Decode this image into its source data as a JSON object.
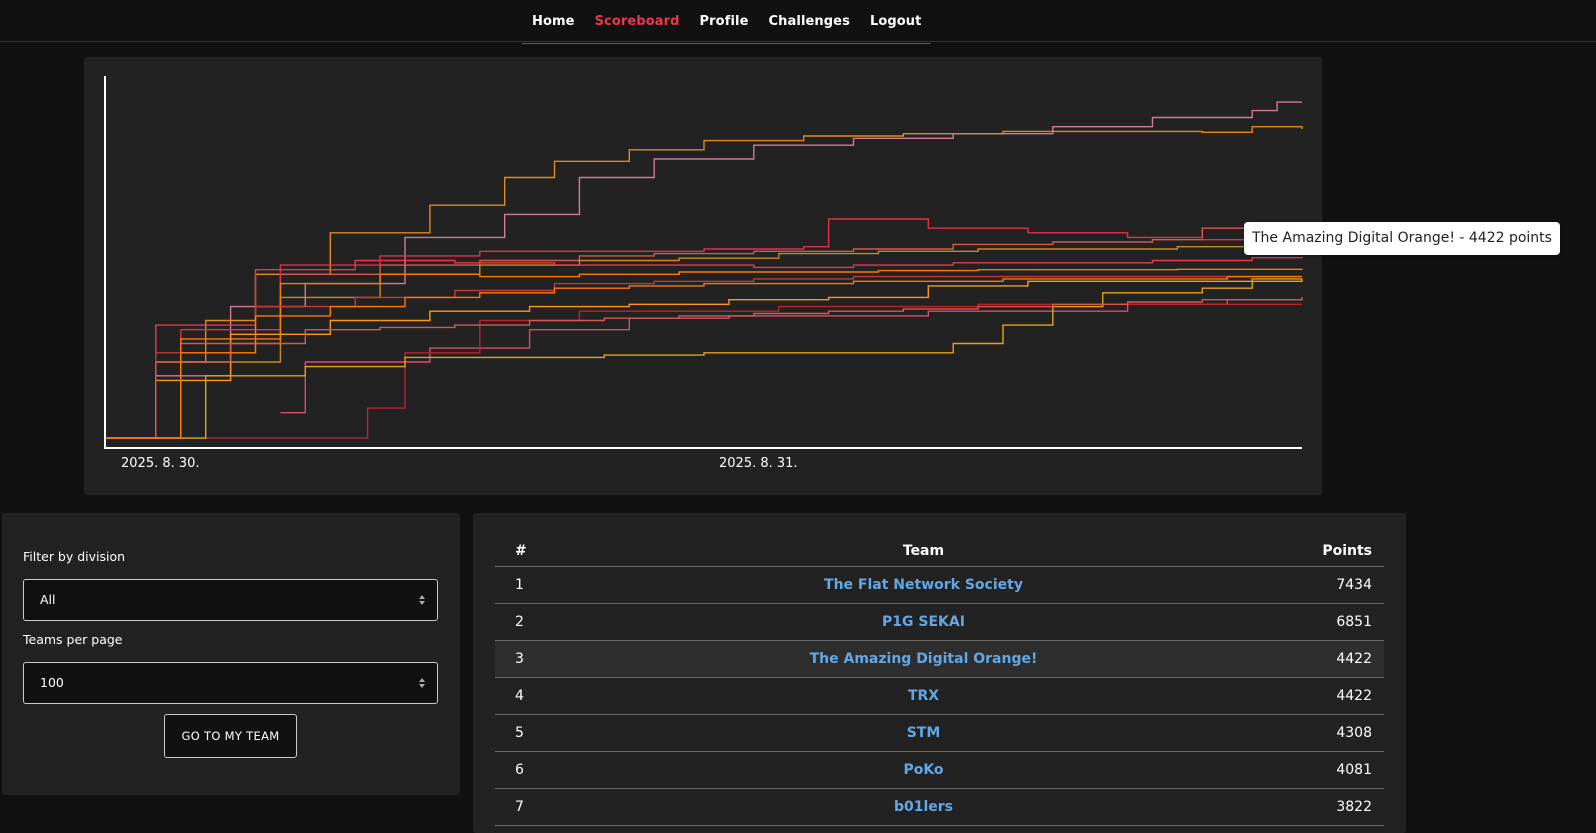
{
  "nav": {
    "items": [
      {
        "label": "Home",
        "active": false
      },
      {
        "label": "Scoreboard",
        "active": true
      },
      {
        "label": "Profile",
        "active": false
      },
      {
        "label": "Challenges",
        "active": false
      },
      {
        "label": "Logout",
        "active": false
      }
    ]
  },
  "colors": {
    "accent": "#e8384f",
    "link": "#62a8e5",
    "background": "#111111",
    "panel": "#222222"
  },
  "graph": {
    "tooltip": "The Amazing Digital Orange! - 4422 points"
  },
  "chart_data": {
    "type": "line",
    "x_tick_labels": [
      "2025. 8. 30.",
      "2025. 8. 31."
    ],
    "x_range_hours": [
      0,
      48
    ],
    "y_range": [
      0,
      8000
    ],
    "grid": false,
    "series": [
      {
        "color": "#d4799a",
        "points": [
          [
            0,
            150
          ],
          [
            2,
            1500
          ],
          [
            5,
            3000
          ],
          [
            8,
            3500
          ],
          [
            12,
            4500
          ],
          [
            16,
            5000
          ],
          [
            19,
            5800
          ],
          [
            22,
            6200
          ],
          [
            26,
            6500
          ],
          [
            30,
            6650
          ],
          [
            34,
            6750
          ],
          [
            38,
            6900
          ],
          [
            42,
            7100
          ],
          [
            46,
            7250
          ],
          [
            47,
            7434
          ],
          [
            48,
            7434
          ]
        ]
      },
      {
        "color": "#e08a1c",
        "points": [
          [
            0,
            150
          ],
          [
            2,
            1800
          ],
          [
            4,
            2700
          ],
          [
            6,
            3700
          ],
          [
            9,
            4600
          ],
          [
            13,
            5200
          ],
          [
            16,
            5800
          ],
          [
            18,
            6150
          ],
          [
            21,
            6400
          ],
          [
            24,
            6600
          ],
          [
            28,
            6700
          ],
          [
            32,
            6750
          ],
          [
            36,
            6800
          ],
          [
            40,
            6800
          ],
          [
            44,
            6780
          ],
          [
            46,
            6900
          ],
          [
            48,
            6851
          ]
        ]
      },
      {
        "color": "#d35a4c",
        "points": [
          [
            0,
            150
          ],
          [
            3,
            2200
          ],
          [
            7,
            3700
          ],
          [
            11,
            3900
          ],
          [
            15,
            4000
          ],
          [
            19,
            4100
          ],
          [
            22,
            4150
          ],
          [
            26,
            4200
          ],
          [
            30,
            4250
          ],
          [
            34,
            4350
          ],
          [
            38,
            4400
          ],
          [
            42,
            4450
          ],
          [
            44,
            4700
          ],
          [
            46,
            4700
          ],
          [
            48,
            4422
          ]
        ]
      },
      {
        "color": "#e0304a",
        "points": [
          [
            0,
            150
          ],
          [
            3,
            2500
          ],
          [
            7,
            3900
          ],
          [
            11,
            4100
          ],
          [
            15,
            4200
          ],
          [
            19,
            4200
          ],
          [
            24,
            4250
          ],
          [
            28,
            4300
          ],
          [
            29,
            4900
          ],
          [
            33,
            4700
          ],
          [
            37,
            4600
          ],
          [
            41,
            4500
          ],
          [
            44,
            4450
          ],
          [
            48,
            4422
          ]
        ]
      },
      {
        "color": "#c98a1a",
        "points": [
          [
            0,
            150
          ],
          [
            3,
            1800
          ],
          [
            7,
            3200
          ],
          [
            11,
            3700
          ],
          [
            15,
            3900
          ],
          [
            19,
            4000
          ],
          [
            23,
            4050
          ],
          [
            27,
            4150
          ],
          [
            31,
            4200
          ],
          [
            35,
            4250
          ],
          [
            39,
            4250
          ],
          [
            43,
            4300
          ],
          [
            48,
            4308
          ]
        ]
      },
      {
        "color": "#e8384f",
        "points": [
          [
            0,
            150
          ],
          [
            2,
            2600
          ],
          [
            6,
            3800
          ],
          [
            10,
            4000
          ],
          [
            14,
            3950
          ],
          [
            18,
            3900
          ],
          [
            22,
            3900
          ],
          [
            26,
            3850
          ],
          [
            30,
            3900
          ],
          [
            34,
            3950
          ],
          [
            38,
            3950
          ],
          [
            42,
            4000
          ],
          [
            46,
            4060
          ],
          [
            48,
            4081
          ]
        ]
      },
      {
        "color": "#ff7a00",
        "points": [
          [
            0,
            150
          ],
          [
            3,
            2300
          ],
          [
            7,
            3500
          ],
          [
            11,
            3700
          ],
          [
            15,
            3650
          ],
          [
            19,
            3700
          ],
          [
            23,
            3750
          ],
          [
            27,
            3750
          ],
          [
            31,
            3780
          ],
          [
            35,
            3800
          ],
          [
            39,
            3800
          ],
          [
            43,
            3810
          ],
          [
            48,
            3822
          ]
        ]
      },
      {
        "color": "#c03a3a",
        "points": [
          [
            0,
            150
          ],
          [
            2,
            2000
          ],
          [
            6,
            3000
          ],
          [
            10,
            3200
          ],
          [
            14,
            3350
          ],
          [
            18,
            3500
          ],
          [
            22,
            3550
          ],
          [
            26,
            3600
          ],
          [
            30,
            3650
          ],
          [
            34,
            3650
          ],
          [
            38,
            3650
          ],
          [
            42,
            3650
          ],
          [
            48,
            3650
          ]
        ]
      },
      {
        "color": "#ff9818",
        "points": [
          [
            0,
            150
          ],
          [
            2,
            1400
          ],
          [
            5,
            2400
          ],
          [
            9,
            2700
          ],
          [
            13,
            2900
          ],
          [
            17,
            3000
          ],
          [
            21,
            3050
          ],
          [
            25,
            3150
          ],
          [
            29,
            3200
          ],
          [
            33,
            3450
          ],
          [
            37,
            3550
          ],
          [
            41,
            3550
          ],
          [
            45,
            3550
          ],
          [
            48,
            3600
          ]
        ]
      },
      {
        "color": "#d94c6a",
        "points": [
          [
            7,
            700
          ],
          [
            8,
            1800
          ],
          [
            13,
            2100
          ],
          [
            17,
            2500
          ],
          [
            21,
            2750
          ],
          [
            25,
            2800
          ],
          [
            29,
            2800
          ],
          [
            33,
            2900
          ],
          [
            37,
            2900
          ],
          [
            41,
            3050
          ],
          [
            45,
            3150
          ],
          [
            48,
            3200
          ]
        ]
      },
      {
        "color": "#b8242f",
        "points": [
          [
            0,
            150
          ],
          [
            10,
            150
          ],
          [
            10.5,
            800
          ],
          [
            12,
            2000
          ],
          [
            15,
            2700
          ],
          [
            19,
            2900
          ],
          [
            23,
            2900
          ],
          [
            27,
            3000
          ],
          [
            31,
            3000
          ],
          [
            35,
            3050
          ],
          [
            39,
            3050
          ],
          [
            43,
            3050
          ],
          [
            48,
            3050
          ]
        ]
      },
      {
        "color": "#e3a21a",
        "points": [
          [
            0,
            150
          ],
          [
            4,
            1500
          ],
          [
            8,
            1700
          ],
          [
            12,
            1900
          ],
          [
            16,
            1900
          ],
          [
            20,
            1950
          ],
          [
            24,
            2000
          ],
          [
            28,
            2000
          ],
          [
            32,
            2000
          ],
          [
            34,
            2200
          ],
          [
            36,
            2600
          ],
          [
            38,
            3000
          ],
          [
            40,
            3300
          ],
          [
            44,
            3400
          ],
          [
            46,
            3600
          ],
          [
            48,
            3600
          ]
        ]
      },
      {
        "color": "#d35a4c",
        "points": [
          [
            0,
            150
          ],
          [
            2,
            1800
          ],
          [
            5,
            2200
          ],
          [
            8,
            2500
          ],
          [
            11,
            2550
          ],
          [
            14,
            2600
          ],
          [
            17,
            2700
          ],
          [
            20,
            2750
          ],
          [
            23,
            2800
          ],
          [
            26,
            2850
          ],
          [
            29,
            2900
          ],
          [
            32,
            2950
          ],
          [
            35,
            3000
          ],
          [
            38,
            3050
          ],
          [
            41,
            3100
          ],
          [
            44,
            3150
          ],
          [
            48,
            3200
          ]
        ]
      },
      {
        "color": "#ff7a00",
        "points": [
          [
            0,
            150
          ],
          [
            3,
            2000
          ],
          [
            6,
            2800
          ],
          [
            9,
            3000
          ],
          [
            12,
            3200
          ],
          [
            15,
            3300
          ],
          [
            18,
            3400
          ],
          [
            21,
            3450
          ],
          [
            24,
            3500
          ],
          [
            27,
            3500
          ],
          [
            30,
            3550
          ],
          [
            33,
            3550
          ],
          [
            36,
            3600
          ],
          [
            39,
            3600
          ],
          [
            42,
            3600
          ],
          [
            45,
            3650
          ],
          [
            48,
            3650
          ]
        ]
      }
    ]
  },
  "filters": {
    "division_label": "Filter by division",
    "division_value": "All",
    "per_page_label": "Teams per page",
    "per_page_value": "100",
    "my_team_button": "GO TO MY TEAM"
  },
  "table": {
    "headers": {
      "rank": "#",
      "team": "Team",
      "points": "Points"
    },
    "rows": [
      {
        "rank": "1",
        "team": "The Flat Network Society",
        "points": "7434"
      },
      {
        "rank": "2",
        "team": "P1G SEKAI",
        "points": "6851"
      },
      {
        "rank": "3",
        "team": "The Amazing Digital Orange!",
        "points": "4422",
        "highlighted": true
      },
      {
        "rank": "4",
        "team": "TRX",
        "points": "4422"
      },
      {
        "rank": "5",
        "team": "STM",
        "points": "4308"
      },
      {
        "rank": "6",
        "team": "PoKo",
        "points": "4081"
      },
      {
        "rank": "7",
        "team": "b01lers",
        "points": "3822"
      }
    ]
  }
}
